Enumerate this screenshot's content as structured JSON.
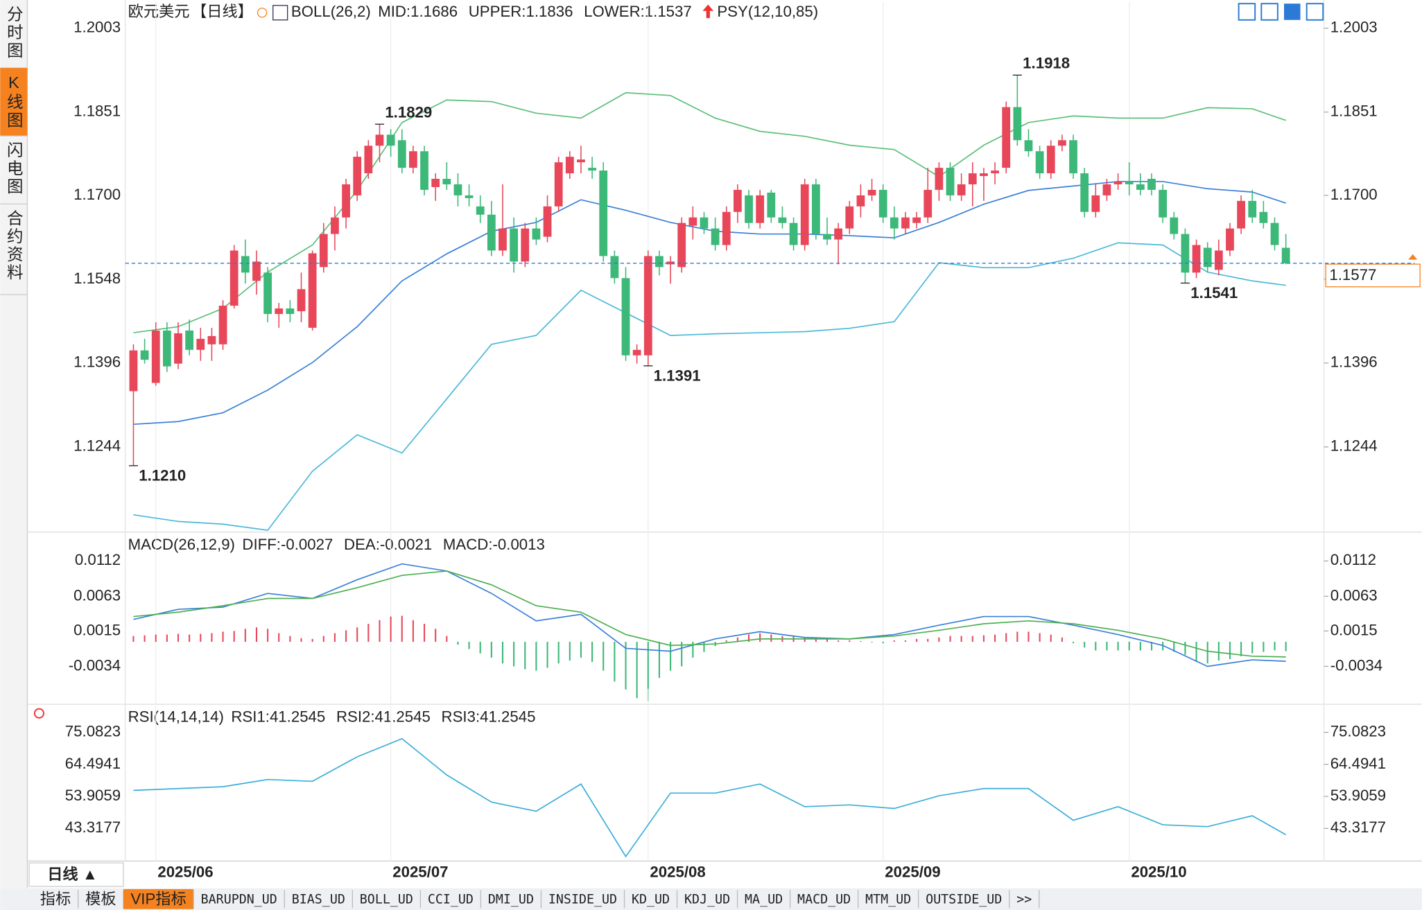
{
  "ui": {
    "tabs_left": [
      "分时图",
      "K线图",
      "闪电图",
      "合约资料"
    ],
    "period": "日线 ▲",
    "tabs_bottom": [
      "指标",
      "模板",
      "VIP指标",
      "BARUPDN_UD",
      "BIAS_UD",
      "BOLL_UD",
      "CCI_UD",
      "DMI_UD",
      "INSIDE_UD",
      "KD_UD",
      "KDJ_UD",
      "MA_UD",
      "MACD_UD",
      "MTM_UD",
      "OUTSIDE_UD",
      ">>"
    ]
  },
  "chart_data": [
    {
      "type": "candlestick",
      "title": "欧元美元",
      "period": "【日线】",
      "indicator": "BOLL(26,2)",
      "extra": "PSY(12,10,85)",
      "legend": [
        {
          "label": "MID:1.1686",
          "color": "#3a7fd8"
        },
        {
          "label": "UPPER:1.1836",
          "color": "#5cbf7a"
        },
        {
          "label": "LOWER:1.1537",
          "color": "#4ab8d8"
        }
      ],
      "up_color": "#e8475a",
      "down_color": "#3cb878",
      "categories": [
        null,
        null,
        "2025/06",
        null,
        null,
        null,
        null,
        null,
        null,
        null,
        null,
        null,
        null,
        null,
        null,
        null,
        null,
        null,
        null,
        null,
        null,
        null,
        null,
        "2025/07",
        null,
        null,
        null,
        null,
        null,
        null,
        null,
        null,
        null,
        null,
        null,
        null,
        null,
        null,
        null,
        null,
        null,
        null,
        null,
        null,
        null,
        null,
        "2025/08",
        null,
        null,
        null,
        null,
        null,
        null,
        null,
        null,
        null,
        null,
        null,
        null,
        null,
        null,
        null,
        null,
        null,
        null,
        null,
        null,
        "2025/09",
        null,
        null,
        null,
        null,
        null,
        null,
        null,
        null,
        null,
        null,
        null,
        null,
        null,
        null,
        null,
        null,
        null,
        null,
        null,
        null,
        null,
        "2025/10",
        null,
        null,
        null,
        null,
        null,
        null,
        null,
        null,
        null,
        null,
        null,
        null,
        null,
        null
      ],
      "candles": [
        [
          1.1345,
          1.143,
          1.121,
          1.1419
        ],
        [
          1.1419,
          1.144,
          1.1395,
          1.1402
        ],
        [
          1.136,
          1.147,
          1.1355,
          1.1455
        ],
        [
          1.1455,
          1.147,
          1.138,
          1.139
        ],
        [
          1.1395,
          1.147,
          1.1385,
          1.145
        ],
        [
          1.1455,
          1.1475,
          1.141,
          1.142
        ],
        [
          1.142,
          1.146,
          1.14,
          1.144
        ],
        [
          1.143,
          1.146,
          1.14,
          1.1445
        ],
        [
          1.143,
          1.151,
          1.142,
          1.15
        ],
        [
          1.15,
          1.161,
          1.1495,
          1.16
        ],
        [
          1.159,
          1.162,
          1.154,
          1.156
        ],
        [
          1.1545,
          1.16,
          1.152,
          1.158
        ],
        [
          1.156,
          1.157,
          1.147,
          1.1485
        ],
        [
          1.1485,
          1.1505,
          1.146,
          1.1495
        ],
        [
          1.1495,
          1.151,
          1.147,
          1.1485
        ],
        [
          1.149,
          1.156,
          1.147,
          1.153
        ],
        [
          1.146,
          1.16,
          1.1455,
          1.1595
        ],
        [
          1.157,
          1.165,
          1.156,
          1.163
        ],
        [
          1.163,
          1.168,
          1.16,
          1.166
        ],
        [
          1.166,
          1.173,
          1.164,
          1.172
        ],
        [
          1.17,
          1.178,
          1.169,
          1.177
        ],
        [
          1.174,
          1.18,
          1.173,
          1.179
        ],
        [
          1.179,
          1.1829,
          1.176,
          1.181
        ],
        [
          1.181,
          1.182,
          1.177,
          1.179
        ],
        [
          1.18,
          1.182,
          1.174,
          1.175
        ],
        [
          1.175,
          1.179,
          1.174,
          1.178
        ],
        [
          1.178,
          1.179,
          1.17,
          1.171
        ],
        [
          1.1715,
          1.174,
          1.169,
          1.173
        ],
        [
          1.173,
          1.176,
          1.171,
          1.172
        ],
        [
          1.172,
          1.174,
          1.168,
          1.17
        ],
        [
          1.17,
          1.172,
          1.168,
          1.1695
        ],
        [
          1.168,
          1.17,
          1.165,
          1.1665
        ],
        [
          1.1665,
          1.169,
          1.159,
          1.16
        ],
        [
          1.16,
          1.172,
          1.159,
          1.164
        ],
        [
          1.164,
          1.166,
          1.156,
          1.158
        ],
        [
          1.158,
          1.165,
          1.157,
          1.164
        ],
        [
          1.164,
          1.166,
          1.161,
          1.162
        ],
        [
          1.1625,
          1.17,
          1.1615,
          1.168
        ],
        [
          1.168,
          1.177,
          1.167,
          1.176
        ],
        [
          1.174,
          1.178,
          1.173,
          1.177
        ],
        [
          1.176,
          1.179,
          1.174,
          1.1765
        ],
        [
          1.175,
          1.177,
          1.173,
          1.1745
        ],
        [
          1.1745,
          1.176,
          1.158,
          1.159
        ],
        [
          1.159,
          1.16,
          1.154,
          1.155
        ],
        [
          1.155,
          1.157,
          1.14,
          1.141
        ],
        [
          1.141,
          1.143,
          1.1395,
          1.142
        ],
        [
          1.141,
          1.16,
          1.1391,
          1.159
        ],
        [
          1.159,
          1.16,
          1.1555,
          1.157
        ],
        [
          1.1575,
          1.159,
          1.154,
          1.158
        ],
        [
          1.157,
          1.166,
          1.156,
          1.165
        ],
        [
          1.1645,
          1.168,
          1.162,
          1.166
        ],
        [
          1.166,
          1.167,
          1.163,
          1.164
        ],
        [
          1.164,
          1.166,
          1.16,
          1.161
        ],
        [
          1.161,
          1.168,
          1.16,
          1.167
        ],
        [
          1.167,
          1.172,
          1.165,
          1.171
        ],
        [
          1.17,
          1.171,
          1.164,
          1.165
        ],
        [
          1.165,
          1.171,
          1.164,
          1.17
        ],
        [
          1.1705,
          1.171,
          1.165,
          1.166
        ],
        [
          1.166,
          1.168,
          1.164,
          1.165
        ],
        [
          1.165,
          1.166,
          1.16,
          1.161
        ],
        [
          1.161,
          1.173,
          1.16,
          1.172
        ],
        [
          1.172,
          1.173,
          1.162,
          1.163
        ],
        [
          1.163,
          1.166,
          1.161,
          1.162
        ],
        [
          1.162,
          1.165,
          1.1575,
          1.164
        ],
        [
          1.164,
          1.169,
          1.163,
          1.168
        ],
        [
          1.168,
          1.172,
          1.166,
          1.17
        ],
        [
          1.17,
          1.173,
          1.169,
          1.171
        ],
        [
          1.171,
          1.172,
          1.165,
          1.166
        ],
        [
          1.166,
          1.168,
          1.162,
          1.164
        ],
        [
          1.164,
          1.167,
          1.163,
          1.166
        ],
        [
          1.165,
          1.167,
          1.164,
          1.166
        ],
        [
          1.166,
          1.175,
          1.165,
          1.171
        ],
        [
          1.171,
          1.176,
          1.169,
          1.175
        ],
        [
          1.175,
          1.176,
          1.169,
          1.17
        ],
        [
          1.17,
          1.174,
          1.169,
          1.172
        ],
        [
          1.172,
          1.176,
          1.168,
          1.174
        ],
        [
          1.1735,
          1.175,
          1.169,
          1.174
        ],
        [
          1.174,
          1.176,
          1.172,
          1.1745
        ],
        [
          1.175,
          1.187,
          1.174,
          1.186
        ],
        [
          1.186,
          1.1918,
          1.179,
          1.18
        ],
        [
          1.18,
          1.182,
          1.177,
          1.178
        ],
        [
          1.178,
          1.179,
          1.173,
          1.174
        ],
        [
          1.174,
          1.18,
          1.173,
          1.179
        ],
        [
          1.179,
          1.181,
          1.178,
          1.18
        ],
        [
          1.18,
          1.181,
          1.173,
          1.174
        ],
        [
          1.174,
          1.175,
          1.166,
          1.167
        ],
        [
          1.167,
          1.172,
          1.166,
          1.17
        ],
        [
          1.17,
          1.173,
          1.169,
          1.172
        ],
        [
          1.172,
          1.174,
          1.171,
          1.1725
        ],
        [
          1.1725,
          1.176,
          1.17,
          1.172
        ],
        [
          1.172,
          1.174,
          1.17,
          1.171
        ],
        [
          1.173,
          1.174,
          1.17,
          1.171
        ],
        [
          1.171,
          1.172,
          1.165,
          1.166
        ],
        [
          1.166,
          1.167,
          1.162,
          1.163
        ],
        [
          1.163,
          1.164,
          1.1541,
          1.156
        ],
        [
          1.156,
          1.162,
          1.155,
          1.161
        ],
        [
          1.1605,
          1.1615,
          1.156,
          1.157
        ],
        [
          1.1565,
          1.162,
          1.1555,
          1.16
        ],
        [
          1.16,
          1.165,
          1.159,
          1.164
        ],
        [
          1.164,
          1.17,
          1.163,
          1.169
        ],
        [
          1.169,
          1.171,
          1.165,
          1.166
        ],
        [
          1.167,
          1.169,
          1.164,
          1.165
        ],
        [
          1.165,
          1.166,
          1.16,
          1.161
        ],
        [
          1.1605,
          1.163,
          1.1575,
          1.1577
        ]
      ],
      "ylim": [
        1.1093,
        1.2018
      ],
      "yticks": [
        1.2003,
        1.1851,
        {
          "value": 1.17,
          "label": "1.1700"
        },
        1.1548,
        1.1396,
        1.1244
      ],
      "line_x": [
        0,
        4,
        8,
        12,
        16,
        20,
        24,
        28,
        32,
        36,
        40,
        44,
        48,
        52,
        56,
        60,
        64,
        68,
        72,
        76,
        80,
        84,
        88,
        92,
        96,
        100,
        103
      ],
      "lines": [
        {
          "color": "#5cbf7a",
          "values": [
            1.1451,
            1.1462,
            1.1495,
            1.1561,
            1.161,
            1.1709,
            1.1832,
            1.1873,
            1.187,
            1.1849,
            1.184,
            1.1886,
            1.1881,
            1.184,
            1.1816,
            1.1807,
            1.1791,
            1.1783,
            1.1734,
            1.1791,
            1.1832,
            1.1844,
            1.184,
            1.184,
            1.1859,
            1.1857,
            1.1836
          ]
        },
        {
          "color": "#3a7fd8",
          "values": [
            1.1285,
            1.129,
            1.1306,
            1.1347,
            1.1397,
            1.1462,
            1.1545,
            1.1594,
            1.1635,
            1.1651,
            1.1692,
            1.1673,
            1.1651,
            1.1635,
            1.163,
            1.163,
            1.1627,
            1.1623,
            1.1651,
            1.1684,
            1.1709,
            1.1717,
            1.1725,
            1.1725,
            1.1712,
            1.1706,
            1.1686
          ]
        },
        {
          "color": "#4ab8d8",
          "values": [
            1.1121,
            1.1109,
            1.1104,
            1.1093,
            1.12,
            1.1266,
            1.1233,
            1.1331,
            1.143,
            1.1446,
            1.1528,
            1.1487,
            1.1446,
            1.1449,
            1.1451,
            1.1453,
            1.1459,
            1.1471,
            1.1578,
            1.1569,
            1.1569,
            1.1586,
            1.1614,
            1.161,
            1.1561,
            1.1545,
            1.1537
          ]
        }
      ],
      "extremes": [
        {
          "value": 1.121,
          "label": "1.1210"
        },
        {
          "value": 1.1829,
          "label": "1.1829"
        },
        {
          "value": 1.1391,
          "label": "1.1391"
        },
        {
          "value": 1.1918,
          "label": "1.1918"
        },
        {
          "value": 1.1541,
          "label": "1.1541"
        }
      ],
      "last_price": 1.1577
    },
    {
      "type": "macd",
      "title": "MACD(26,12,9)",
      "legend": [
        {
          "label": "DIFF:-0.0027",
          "color": "#3a7fd8"
        },
        {
          "label": "DEA:-0.0021",
          "color": "#5cbf7a"
        },
        {
          "label": "MACD:-0.0013",
          "color": "#4ab8d8"
        }
      ],
      "ylim": [
        -0.0084,
        0.0142
      ],
      "yticks": [
        0.0112,
        0.0063,
        0.0015,
        -0.0034
      ],
      "line_x": [
        0,
        4,
        8,
        12,
        16,
        20,
        24,
        28,
        32,
        36,
        40,
        44,
        48,
        52,
        56,
        60,
        64,
        68,
        72,
        76,
        80,
        84,
        88,
        92,
        96,
        100,
        103
      ],
      "lines": [
        {
          "color": "#3a7fd8",
          "values": [
            0.0031,
            0.0045,
            0.0048,
            0.0067,
            0.006,
            0.0086,
            0.0108,
            0.0098,
            0.0067,
            0.0029,
            0.0038,
            -0.0009,
            -0.0013,
            0.0004,
            0.0014,
            0.0006,
            0.0004,
            0.001,
            0.0023,
            0.0035,
            0.0035,
            0.0023,
            0.001,
            -0.0005,
            -0.0034,
            -0.0025,
            -0.0027
          ]
        },
        {
          "color": "#4caf50",
          "values": [
            0.0035,
            0.0041,
            0.005,
            0.006,
            0.006,
            0.0075,
            0.0092,
            0.0098,
            0.0079,
            0.005,
            0.0041,
            0.001,
            -0.0005,
            -0.0003,
            0.0004,
            0.0004,
            0.0004,
            0.0008,
            0.0016,
            0.0025,
            0.0029,
            0.0025,
            0.0016,
            0.0004,
            -0.0013,
            -0.002,
            -0.0021
          ]
        }
      ],
      "up_color": "#e8475a",
      "down_color": "#3cb878",
      "histogram": [
        0.0008,
        0.0009,
        0.001,
        0.001,
        0.0011,
        0.001,
        0.0011,
        0.0012,
        0.0014,
        0.0015,
        0.0018,
        0.002,
        0.0018,
        0.0012,
        0.0008,
        0.0005,
        0.0004,
        0.0008,
        0.0012,
        0.0016,
        0.002,
        0.0025,
        0.003,
        0.0035,
        0.0036,
        0.003,
        0.0025,
        0.0018,
        0.0008,
        -0.0004,
        -0.001,
        -0.0016,
        -0.0022,
        -0.003,
        -0.0034,
        -0.0038,
        -0.004,
        -0.0036,
        -0.003,
        -0.0026,
        -0.0022,
        -0.0028,
        -0.004,
        -0.0055,
        -0.0066,
        -0.0078,
        -0.0082,
        -0.005,
        -0.004,
        -0.0034,
        -0.0022,
        -0.0014,
        -0.0006,
        0.0002,
        0.0006,
        0.001,
        0.0012,
        0.001,
        0.0008,
        0.0008,
        0.0006,
        0.0006,
        0.0004,
        0.0002,
        0.0002,
        0.0001,
        -0.0001,
        -0.0002,
        0.0002,
        0.0002,
        0.0004,
        0.0004,
        0.0006,
        0.0008,
        0.0008,
        0.0008,
        0.0009,
        0.001,
        0.0012,
        0.0014,
        0.0014,
        0.0012,
        0.001,
        0.0006,
        -0.0002,
        -0.0008,
        -0.0012,
        -0.0012,
        -0.0012,
        -0.0012,
        -0.0012,
        -0.0012,
        -0.0012,
        -0.0014,
        -0.0018,
        -0.0028,
        -0.003,
        -0.0026,
        -0.0024,
        -0.002,
        -0.0016,
        -0.0014,
        -0.0012,
        -0.0013
      ]
    },
    {
      "type": "line",
      "title": "RSI(14,14,14)",
      "legend": [
        {
          "label": "RSI1:41.2545",
          "color": "#3a9fd8"
        },
        {
          "label": "RSI2:41.2545",
          "color": "#5cbf7a"
        },
        {
          "label": "RSI3:41.2545",
          "color": "#4ab8d8"
        }
      ],
      "ylim": [
        32.53,
        83.47
      ],
      "yticks": [
        75.0823,
        64.4941,
        53.9059,
        43.3177
      ],
      "line_x": [
        0,
        4,
        8,
        12,
        16,
        20,
        24,
        28,
        32,
        36,
        40,
        44,
        48,
        52,
        56,
        60,
        64,
        68,
        72,
        76,
        80,
        84,
        88,
        92,
        96,
        100,
        103
      ],
      "lines": [
        {
          "color": "#3aaed8",
          "values": [
            55.9,
            56.5,
            57.1,
            59.5,
            58.9,
            66.99,
            72.98,
            61.0,
            52.01,
            49.01,
            58.0,
            34.03,
            55.0,
            55.0,
            58.0,
            50.51,
            51.11,
            49.91,
            54.11,
            56.5,
            56.5,
            46.01,
            50.51,
            44.52,
            43.91,
            47.51,
            41.25
          ]
        }
      ]
    }
  ]
}
